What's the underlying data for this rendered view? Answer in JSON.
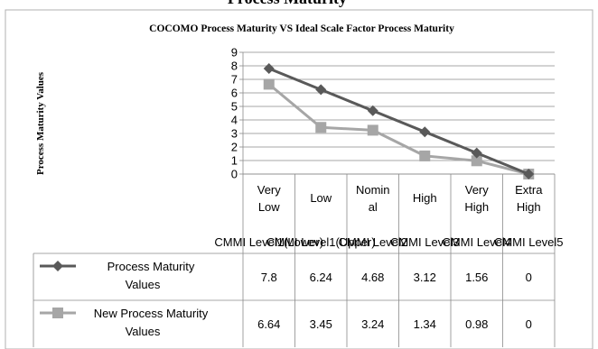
{
  "header": {
    "cut_title": "Process Maturity"
  },
  "chart_data": {
    "type": "line",
    "title": "COCOMO Process Maturity VS Ideal Scale Factor Process Maturity",
    "ylabel": "Process Maturity Values",
    "xlabel": "",
    "ylim": [
      0,
      9
    ],
    "y_ticks": [
      0,
      1,
      2,
      3,
      4,
      5,
      6,
      7,
      8,
      9
    ],
    "grid": true,
    "legend": "data-table",
    "categories": [
      [
        "Very",
        "Low"
      ],
      [
        "Low"
      ],
      [
        "Nomin",
        "al"
      ],
      [
        "High"
      ],
      [
        "Very",
        "High"
      ],
      [
        "Extra",
        "High"
      ]
    ],
    "category_groups": [
      "CMMI Level1(Lower)",
      "CMMI Level1(Upper)",
      "CMMI Level2",
      "CMMI Level3",
      "CMMI Level4",
      "CMMI Level5"
    ],
    "series": [
      {
        "name": "Process Maturity Values",
        "name_lines": [
          "Process Maturity",
          "Values"
        ],
        "values": [
          7.8,
          6.24,
          4.68,
          3.12,
          1.56,
          0
        ],
        "labels": [
          "7.8",
          "6.24",
          "4.68",
          "3.12",
          "1.56",
          "0"
        ],
        "color": "#595959",
        "marker": "diamond"
      },
      {
        "name": "New Process Maturity Values",
        "name_lines": [
          "New Process Maturity",
          "Values"
        ],
        "values": [
          6.64,
          3.45,
          3.24,
          1.34,
          0.98,
          0
        ],
        "labels": [
          "6.64",
          "3.45",
          "3.24",
          "1.34",
          "0.98",
          "0"
        ],
        "color": "#a6a6a6",
        "marker": "square"
      }
    ]
  }
}
